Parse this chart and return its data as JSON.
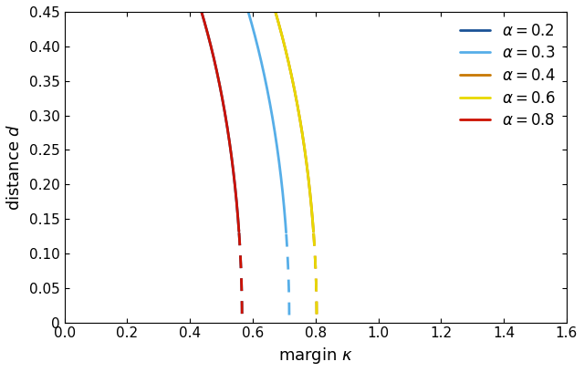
{
  "alphas": [
    0.2,
    0.3,
    0.4,
    0.6,
    0.8
  ],
  "colors": [
    "#1a5296",
    "#56aee8",
    "#c87800",
    "#e8d800",
    "#cc1100"
  ],
  "solid_threshold": 0.13,
  "xlim": [
    0,
    1.6
  ],
  "ylim": [
    0,
    0.45
  ],
  "xlabel": "margin $\\kappa$",
  "ylabel": "distance $d$",
  "legend_labels": [
    "$\\alpha = 0.2$",
    "$\\alpha = 0.3$",
    "$\\alpha = 0.4$",
    "$\\alpha = 0.6$",
    "$\\alpha = 0.8$"
  ],
  "xticks": [
    0,
    0.2,
    0.4,
    0.6,
    0.8,
    1.0,
    1.2,
    1.4,
    1.6
  ],
  "yticks": [
    0,
    0.05,
    0.1,
    0.15,
    0.2,
    0.25,
    0.3,
    0.35,
    0.4,
    0.45
  ]
}
